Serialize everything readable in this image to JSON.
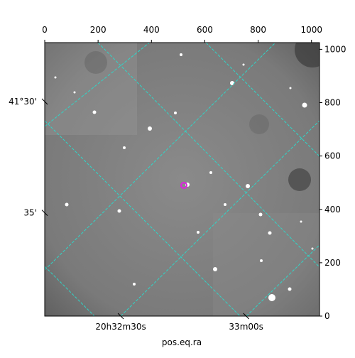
{
  "chart_data": {
    "type": "image",
    "xlabel": "pos.eq.ra",
    "xlim": [
      0,
      1030
    ],
    "ylim": [
      0,
      1025
    ],
    "xticks": [
      0,
      200,
      400,
      600,
      800,
      1000
    ],
    "yticks": [
      0,
      200,
      400,
      600,
      800,
      1000
    ],
    "world_xticks": [
      {
        "value": 285,
        "label": "20h32m30s"
      },
      {
        "value": 755,
        "label": "33m00s"
      }
    ],
    "world_yticks": [
      {
        "value": 804,
        "label": "41°30'"
      },
      {
        "value": 387,
        "label": "35'"
      }
    ],
    "grid": true,
    "grid_color": "#2fd6c8"
  }
}
